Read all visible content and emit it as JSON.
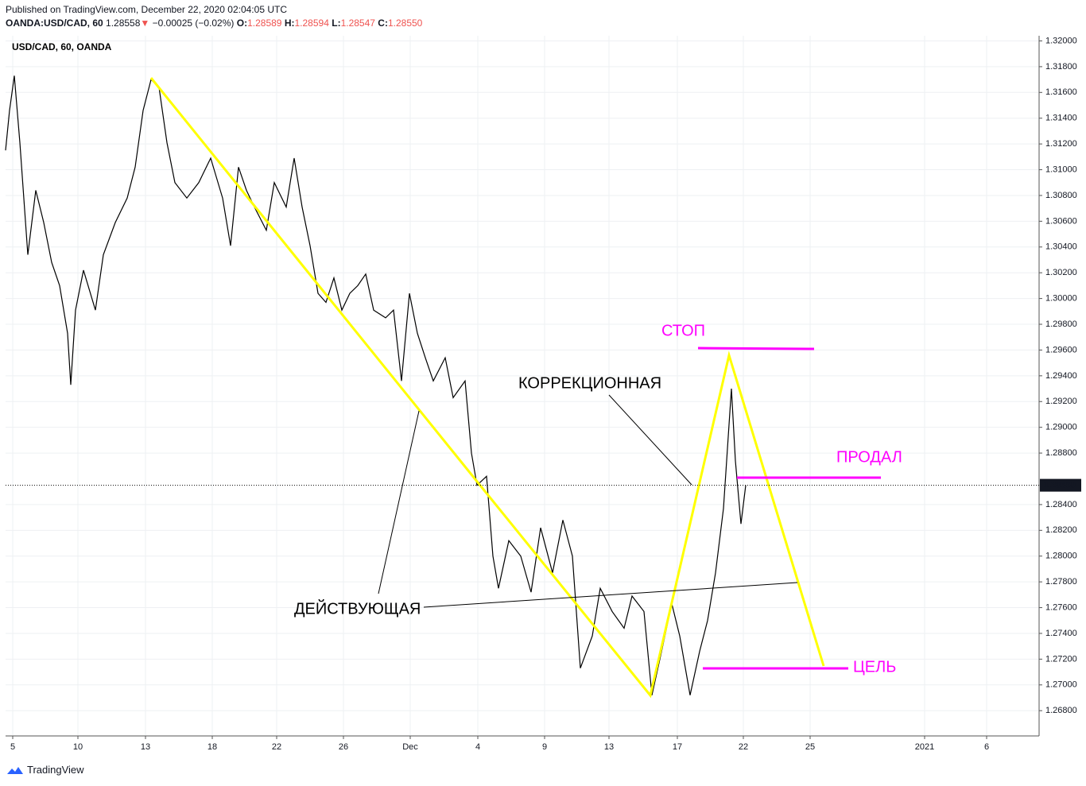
{
  "chart_data": {
    "type": "line",
    "header": {
      "published": "Published on TradingView.com, December 22, 2020 02:04:05 UTC",
      "symbol": "OANDA:USD/CAD, 60",
      "price": "1.28558",
      "arrow": "▼",
      "change": "−0.00025 (−0.02%)",
      "ohlc": [
        {
          "key": "O:",
          "value": "1.28589"
        },
        {
          "key": "H:",
          "value": "1.28594"
        },
        {
          "key": "L:",
          "value": "1.28547"
        },
        {
          "key": "C:",
          "value": "1.28550"
        }
      ]
    },
    "title": "USD/CAD, 60, OANDA",
    "color": "#000000",
    "x": [
      0,
      5,
      11,
      18,
      28,
      38,
      48,
      58,
      68,
      78,
      82,
      88,
      98,
      113,
      123,
      138,
      153,
      163,
      173,
      183,
      193,
      203,
      213,
      228,
      243,
      258,
      273,
      283,
      293,
      303,
      313,
      328,
      338,
      353,
      363,
      373,
      383,
      393,
      403,
      413,
      423,
      433,
      443,
      453,
      463,
      478,
      488,
      498,
      508,
      518,
      528,
      538,
      553,
      563,
      578,
      586,
      593,
      605,
      613,
      620,
      633,
      648,
      661,
      673,
      688,
      701,
      713,
      723,
      738,
      748,
      763,
      778,
      788,
      803,
      813,
      823,
      838,
      848,
      861,
      873,
      883,
      893,
      903,
      913,
      918,
      925,
      931
    ],
    "values": [
      1.3115,
      1.3146,
      1.3173,
      1.3121,
      1.3034,
      1.3084,
      1.3059,
      1.3028,
      1.301,
      1.2973,
      1.2933,
      1.2991,
      1.3022,
      1.2991,
      1.3034,
      1.3059,
      1.3078,
      1.3102,
      1.3146,
      1.317,
      1.3164,
      1.3121,
      1.309,
      1.3078,
      1.309,
      1.3109,
      1.3078,
      1.3041,
      1.3102,
      1.3084,
      1.3071,
      1.3053,
      1.309,
      1.3071,
      1.3109,
      1.3071,
      1.3041,
      1.3004,
      1.2997,
      1.3016,
      1.2991,
      1.3004,
      1.301,
      1.3019,
      1.2991,
      1.2985,
      1.2991,
      1.2936,
      1.3004,
      1.2973,
      1.2954,
      1.2936,
      1.2954,
      1.2923,
      1.2936,
      1.288,
      1.2855,
      1.2862,
      1.28,
      1.2775,
      1.2812,
      1.28,
      1.2772,
      1.2822,
      1.2787,
      1.2828,
      1.28,
      1.2713,
      1.2738,
      1.2775,
      1.2757,
      1.2744,
      1.2769,
      1.2757,
      1.2692,
      1.272,
      1.2763,
      1.2738,
      1.2692,
      1.2726,
      1.275,
      1.2787,
      1.2837,
      1.293,
      1.2874,
      1.2825,
      1.2855
    ],
    "xlim": [
      0,
      1300
    ],
    "xticks": [
      {
        "value": 9,
        "label": "5"
      },
      {
        "value": 91,
        "label": "10"
      },
      {
        "value": 176,
        "label": "13"
      },
      {
        "value": 260,
        "label": "18"
      },
      {
        "value": 341,
        "label": "22"
      },
      {
        "value": 425,
        "label": "26"
      },
      {
        "value": 509,
        "label": "Dec"
      },
      {
        "value": 594,
        "label": "4"
      },
      {
        "value": 678,
        "label": "9"
      },
      {
        "value": 759,
        "label": "13"
      },
      {
        "value": 845,
        "label": "17"
      },
      {
        "value": 928,
        "label": "22"
      },
      {
        "value": 1012,
        "label": "25"
      },
      {
        "value": 1156,
        "label": "2021"
      },
      {
        "value": 1234,
        "label": "6"
      }
    ],
    "ylim": [
      1.2661,
      1.3204
    ],
    "yticks": [
      {
        "value": 1.268,
        "label": "1.26800"
      },
      {
        "value": 1.27,
        "label": "1.27000"
      },
      {
        "value": 1.272,
        "label": "1.27200"
      },
      {
        "value": 1.274,
        "label": "1.27400"
      },
      {
        "value": 1.276,
        "label": "1.27600"
      },
      {
        "value": 1.278,
        "label": "1.27800"
      },
      {
        "value": 1.28,
        "label": "1.28000"
      },
      {
        "value": 1.282,
        "label": "1.28200"
      },
      {
        "value": 1.284,
        "label": "1.28400"
      },
      {
        "value": 1.288,
        "label": "1.28800"
      },
      {
        "value": 1.29,
        "label": "1.29000"
      },
      {
        "value": 1.292,
        "label": "1.29200"
      },
      {
        "value": 1.294,
        "label": "1.29400"
      },
      {
        "value": 1.296,
        "label": "1.29600"
      },
      {
        "value": 1.298,
        "label": "1.29800"
      },
      {
        "value": 1.3,
        "label": "1.30000"
      },
      {
        "value": 1.302,
        "label": "1.30200"
      },
      {
        "value": 1.304,
        "label": "1.30400"
      },
      {
        "value": 1.306,
        "label": "1.30600"
      },
      {
        "value": 1.308,
        "label": "1.30800"
      },
      {
        "value": 1.31,
        "label": "1.31000"
      },
      {
        "value": 1.312,
        "label": "1.31200"
      },
      {
        "value": 1.314,
        "label": "1.31400"
      },
      {
        "value": 1.316,
        "label": "1.31600"
      },
      {
        "value": 1.318,
        "label": "1.31800"
      },
      {
        "value": 1.32,
        "label": "1.32000"
      }
    ],
    "grid": true,
    "last_price": {
      "value": 1.2855,
      "label": "1.28550"
    },
    "annotations": [
      "СТОП",
      "ПРОДАЛ",
      "ЦЕЛЬ",
      "КОРРЕКЦИОННАЯ",
      "ДЕЙСТВУЮЩАЯ"
    ],
    "footer": "TradingView"
  }
}
